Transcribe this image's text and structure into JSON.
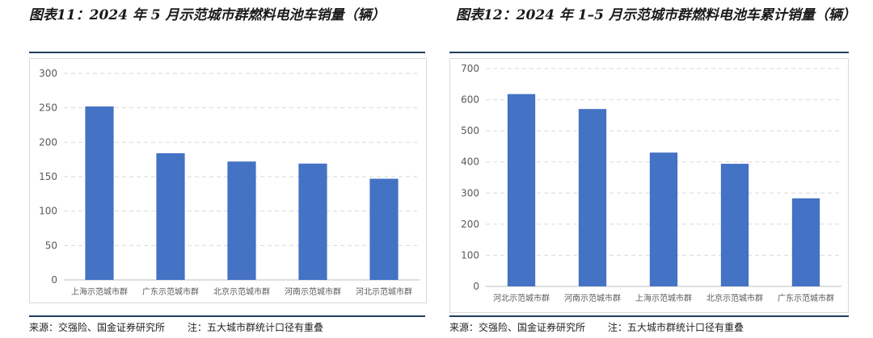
{
  "colors": {
    "bar": "#4472c4",
    "grid": "#d9d9d9",
    "axis_text": "#595959",
    "rule": "#1f3e5c"
  },
  "chart_data": [
    {
      "type": "bar",
      "title": "图表11：2024 年 5 月示范城市群燃料电池车销量（辆）",
      "categories": [
        "上海示范城市群",
        "广东示范城市群",
        "北京示范城市群",
        "河南示范城市群",
        "河北示范城市群"
      ],
      "values": [
        252,
        184,
        172,
        169,
        147
      ],
      "yticks": [
        0,
        50,
        100,
        150,
        200,
        250,
        300
      ],
      "ylim": [
        0,
        300
      ],
      "grid": true,
      "source": "来源：交强险、国金证券研究所",
      "note": "注：五大城市群统计口径有重叠"
    },
    {
      "type": "bar",
      "title": "图表12：2024 年 1–5 月示范城市群燃料电池车累计销量（辆）",
      "categories": [
        "河北示范城市群",
        "河南示范城市群",
        "上海示范城市群",
        "北京示范城市群",
        "广东示范城市群"
      ],
      "values": [
        618,
        570,
        430,
        394,
        283
      ],
      "yticks": [
        0,
        100,
        200,
        300,
        400,
        500,
        600,
        700
      ],
      "ylim": [
        0,
        700
      ],
      "grid": true,
      "source": "来源：交强险、国金证券研究所",
      "note": "注：五大城市群统计口径有重叠"
    }
  ]
}
